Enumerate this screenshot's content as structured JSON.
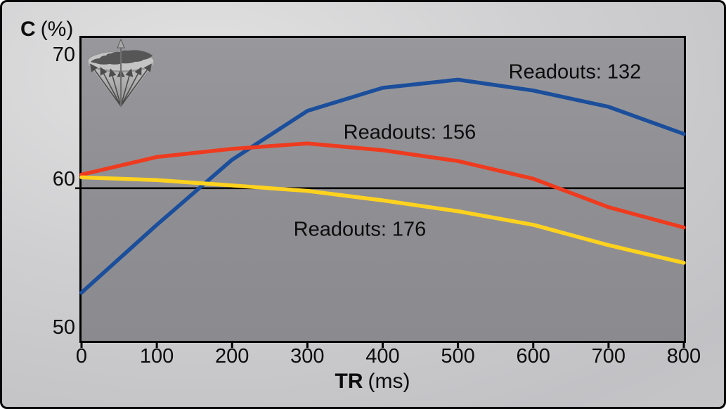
{
  "figure": {
    "y_axis": {
      "label_bold": "C",
      "label_unit": "(%)",
      "ticks": [
        "70",
        "60",
        "50"
      ]
    },
    "x_axis": {
      "label_bold": "TR",
      "label_unit": "(ms)",
      "ticks": [
        "0",
        "100",
        "200",
        "300",
        "400",
        "500",
        "600",
        "700",
        "800"
      ]
    },
    "icon": {
      "name": "radial-trajectories-globe-icon"
    }
  },
  "chart_data": {
    "type": "line",
    "title": "",
    "xlabel": "TR (ms)",
    "ylabel": "C (%)",
    "x": [
      0,
      100,
      200,
      300,
      400,
      500,
      600,
      700,
      800
    ],
    "xlim": [
      0,
      800
    ],
    "ylim": [
      48.8,
      71.1
    ],
    "y_ticks": [
      50,
      60,
      70
    ],
    "grid": false,
    "legend_position": "inline-curve-labels",
    "series": [
      {
        "name": "Readouts: 132",
        "color": "#1b4e9b",
        "values": [
          52.0,
          57.0,
          61.8,
          65.4,
          67.1,
          67.7,
          66.9,
          65.7,
          63.7
        ]
      },
      {
        "name": "Readouts: 156",
        "color": "#ee3b1f",
        "values": [
          60.7,
          62.0,
          62.6,
          63.0,
          62.5,
          61.7,
          60.4,
          58.3,
          56.8
        ]
      },
      {
        "name": "Readouts: 176",
        "color": "#ffd21e",
        "values": [
          60.5,
          60.3,
          59.9,
          59.5,
          58.8,
          58.0,
          57.0,
          55.5,
          54.2
        ]
      }
    ],
    "reference_line": {
      "y": 59.7,
      "color": "#000000"
    }
  }
}
